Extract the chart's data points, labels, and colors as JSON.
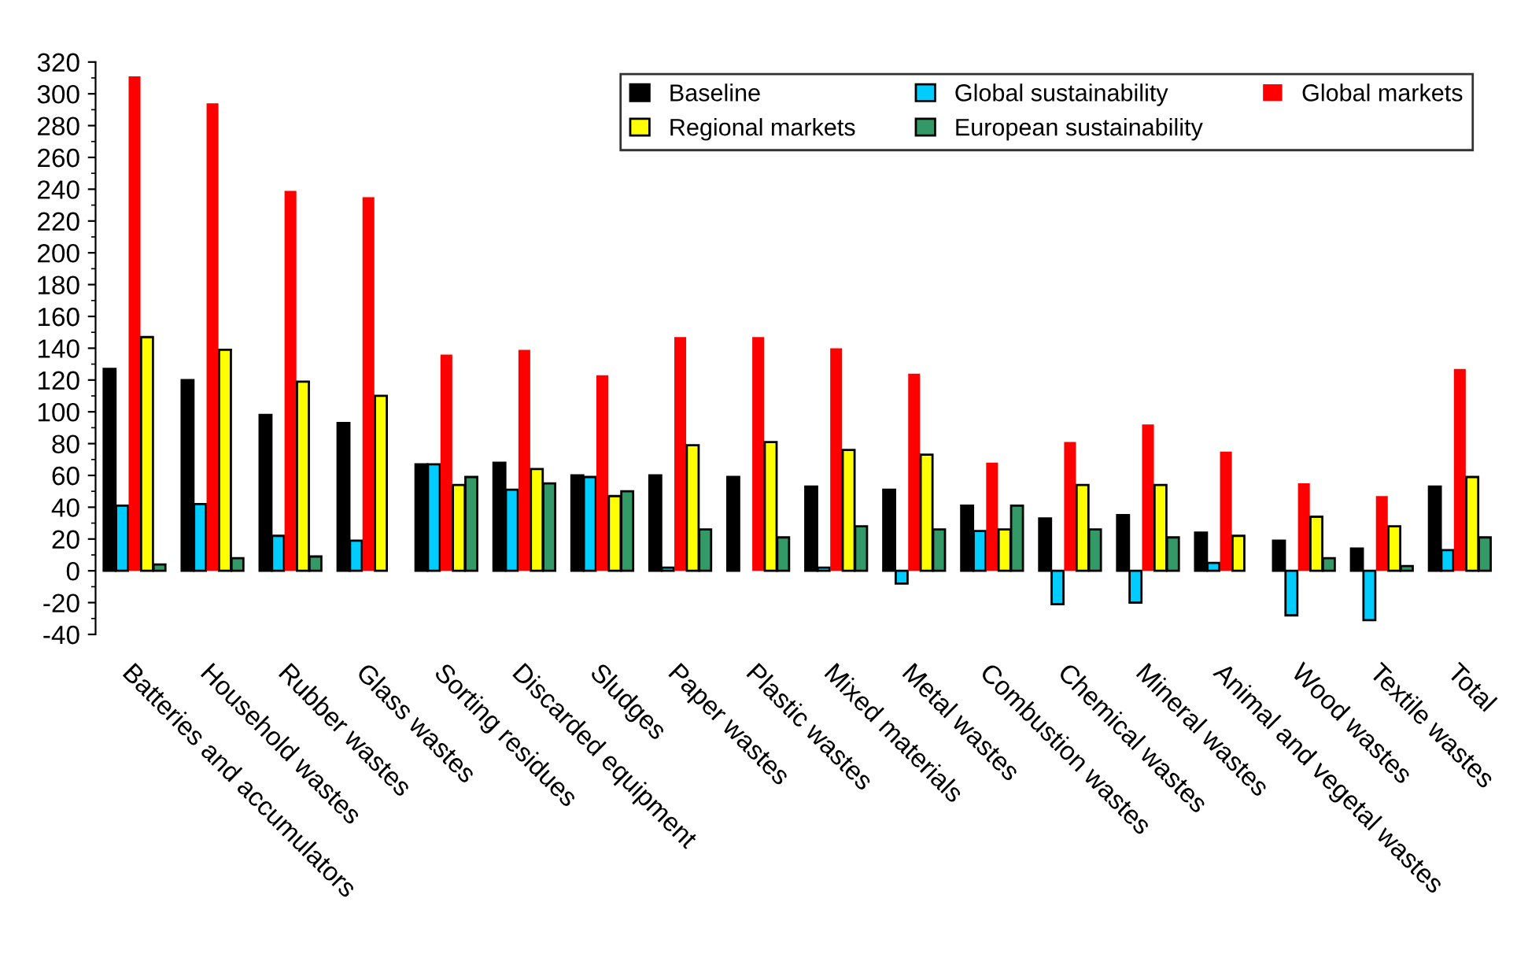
{
  "chart_data": {
    "type": "bar",
    "categories": [
      "Batteries and accumulators",
      "Household wastes",
      "Rubber wastes",
      "Glass wastes",
      "Sorting residues",
      "Discarded equipment",
      "Sludges",
      "Paper wastes",
      "Plastic wastes",
      "Mixed materials",
      "Metal wastes",
      "Combustion wastes",
      "Chemical wastes",
      "Mineral wastes",
      "Animal and vegetal wastes",
      "Wood wastes",
      "Textile wastes",
      "Total"
    ],
    "series": [
      {
        "name": "Baseline",
        "color": "#000000",
        "values": [
          127,
          120,
          98,
          93,
          67,
          68,
          60,
          60,
          59,
          53,
          51,
          41,
          33,
          35,
          24,
          19,
          14,
          53
        ]
      },
      {
        "name": "Global sustainability",
        "color": "#00ccff",
        "values": [
          41,
          42,
          22,
          19,
          67,
          51,
          59,
          2,
          null,
          2,
          -8,
          25,
          -21,
          -20,
          5,
          -28,
          -31,
          13
        ]
      },
      {
        "name": "Global markets",
        "color": "#ff0000",
        "values": [
          311,
          294,
          239,
          235,
          136,
          139,
          123,
          147,
          147,
          140,
          124,
          68,
          81,
          92,
          75,
          55,
          47,
          127
        ]
      },
      {
        "name": "Regional markets",
        "color": "#ffff00",
        "values": [
          147,
          139,
          119,
          110,
          54,
          64,
          47,
          79,
          81,
          76,
          73,
          26,
          54,
          54,
          22,
          34,
          28,
          59
        ]
      },
      {
        "name": "European sustainability",
        "color": "#339966",
        "values": [
          4,
          8,
          9,
          null,
          59,
          55,
          50,
          26,
          21,
          28,
          26,
          41,
          26,
          21,
          null,
          8,
          3,
          21
        ]
      }
    ],
    "ylim": [
      -40,
      320
    ],
    "yticks": [
      -40,
      -20,
      0,
      20,
      40,
      60,
      80,
      100,
      120,
      140,
      160,
      180,
      200,
      220,
      240,
      260,
      280,
      300,
      320
    ],
    "legend": "top right"
  }
}
